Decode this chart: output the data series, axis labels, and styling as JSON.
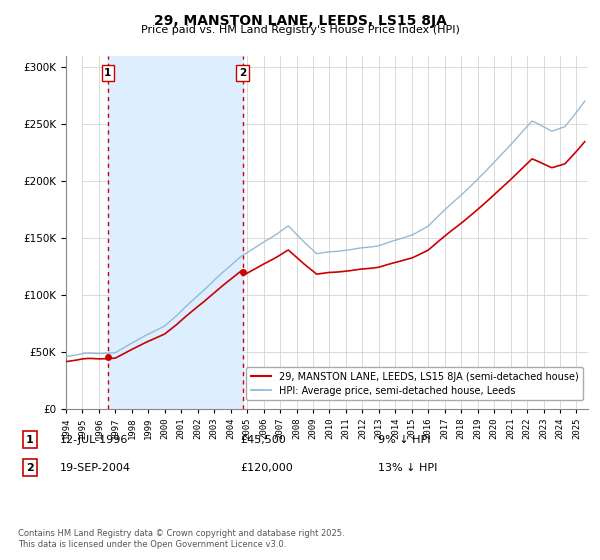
{
  "title": "29, MANSTON LANE, LEEDS, LS15 8JA",
  "subtitle": "Price paid vs. HM Land Registry's House Price Index (HPI)",
  "hpi_color": "#8ab4d4",
  "price_color": "#cc0000",
  "vline_color": "#cc0000",
  "shade_color": "#ddeeff",
  "hatch_color": "#cccccc",
  "background_color": "#ffffff",
  "grid_color": "#cccccc",
  "legend_entries": [
    "29, MANSTON LANE, LEEDS, LS15 8JA (semi-detached house)",
    "HPI: Average price, semi-detached house, Leeds"
  ],
  "sale1": {
    "date_str": "12-JUL-1996",
    "year": 1996.54,
    "price": 45500,
    "label": "1",
    "pct": "9% ↓ HPI"
  },
  "sale2": {
    "date_str": "19-SEP-2004",
    "year": 2004.72,
    "price": 120000,
    "label": "2",
    "pct": "13% ↓ HPI"
  },
  "footnote": "Contains HM Land Registry data © Crown copyright and database right 2025.\nThis data is licensed under the Open Government Licence v3.0.",
  "ylim": [
    0,
    310000
  ],
  "xlim_start": 1994.0,
  "xlim_end": 2025.7
}
